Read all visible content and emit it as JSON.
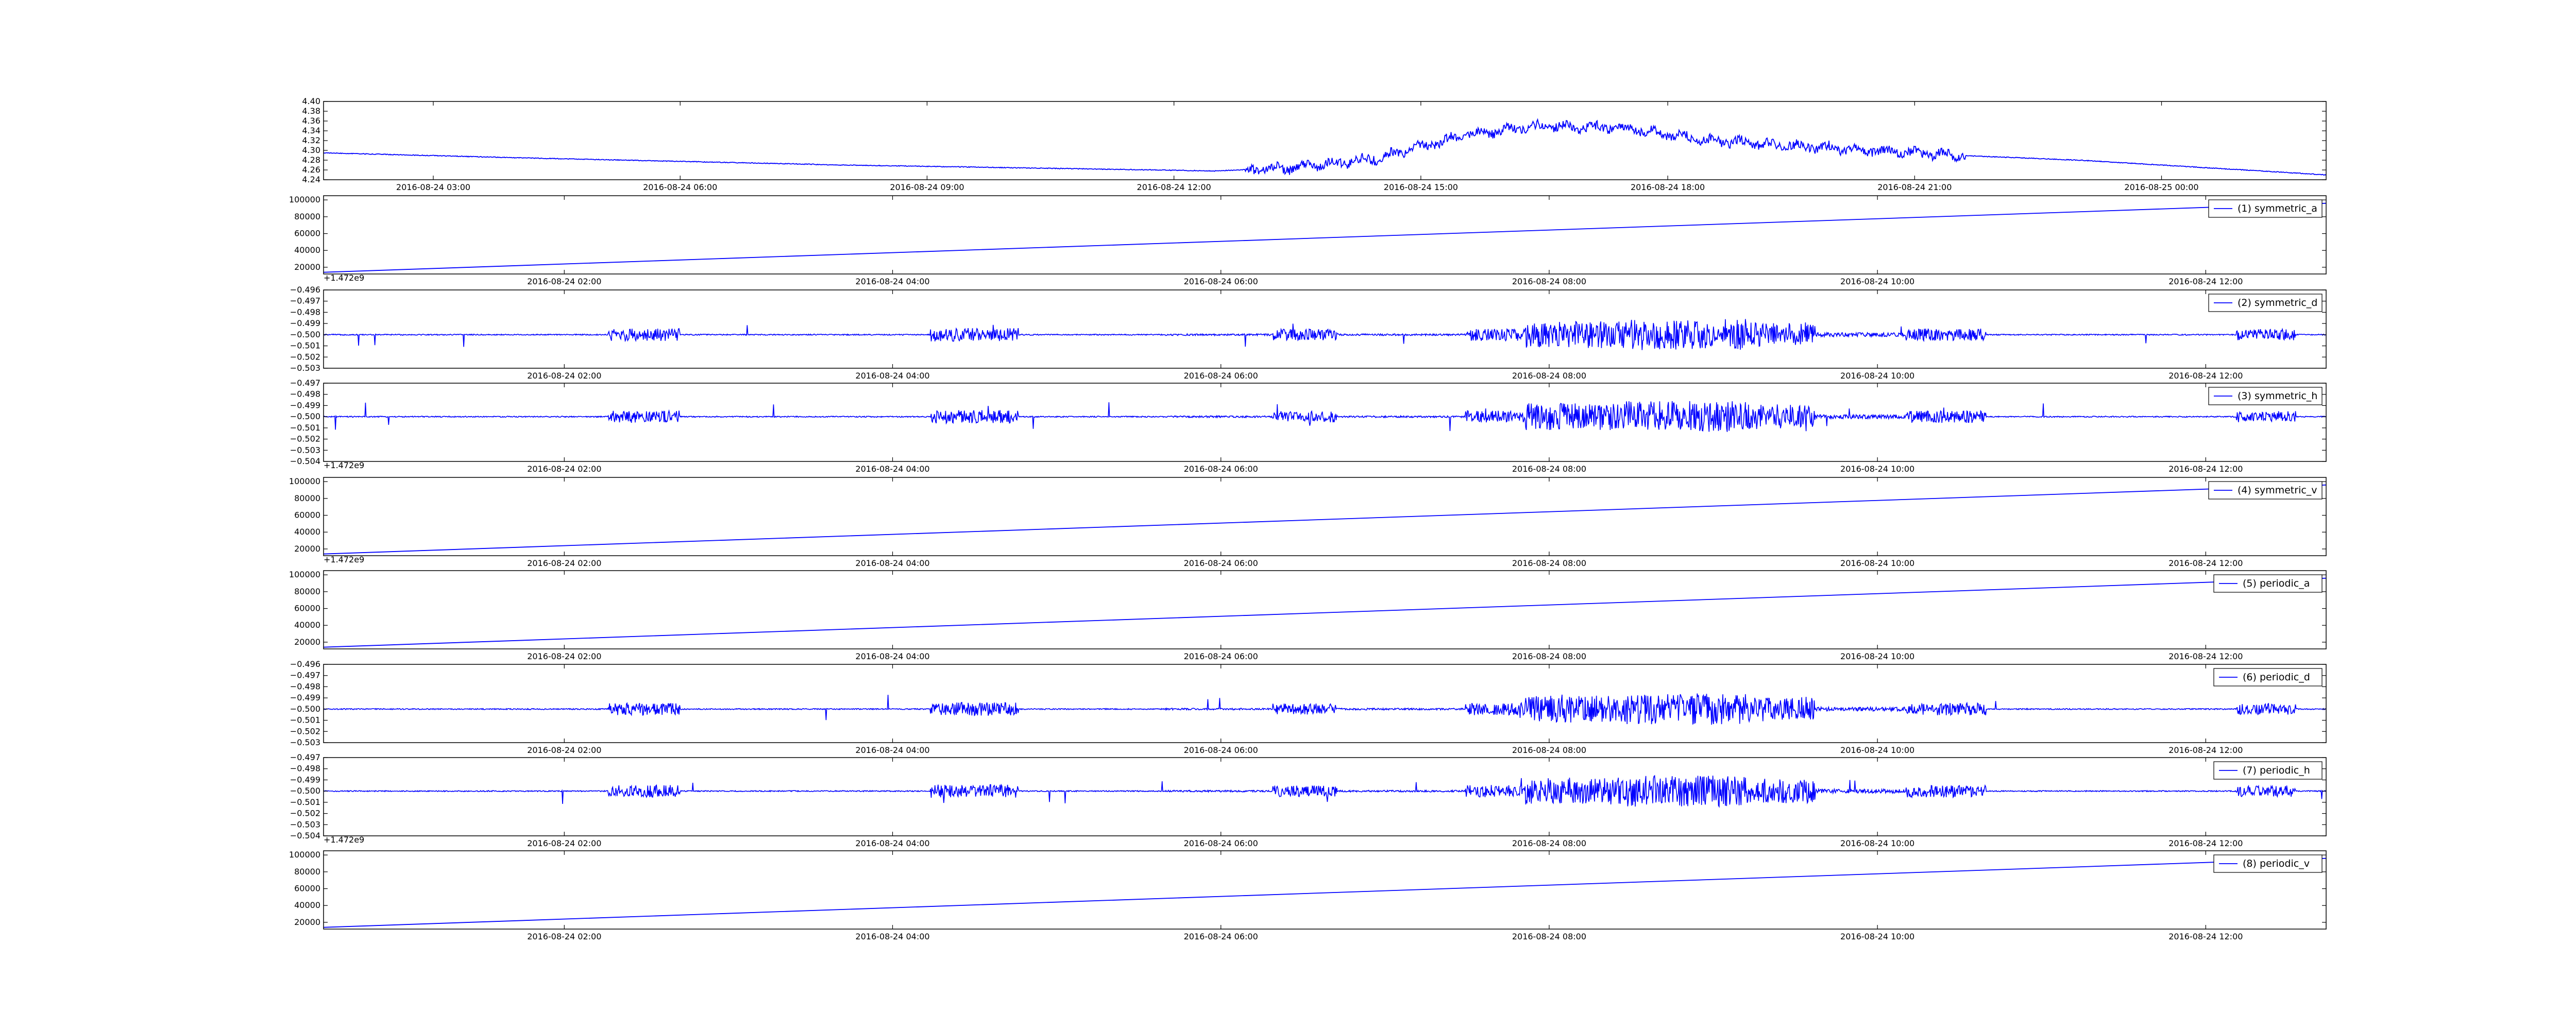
{
  "figure": {
    "background": "#ffffff",
    "line_color": "#0000ff",
    "frame_color": "#000000"
  },
  "chart_data": [
    {
      "type": "line",
      "title": "",
      "xlabel": "",
      "ylabel": "",
      "legend": null,
      "offset_text": "",
      "ylim": [
        4.24,
        4.4
      ],
      "yticks": [
        "4.24",
        "4.26",
        "4.28",
        "4.30",
        "4.32",
        "4.34",
        "4.36",
        "4.38",
        "4.40"
      ],
      "xlim": [
        "2016-08-24 01:40",
        "2016-08-25 02:00"
      ],
      "xticks": [
        "2016-08-24 03:00",
        "2016-08-24 06:00",
        "2016-08-24 09:00",
        "2016-08-24 12:00",
        "2016-08-24 15:00",
        "2016-08-24 18:00",
        "2016-08-24 21:00",
        "2016-08-25 00:00"
      ],
      "signal": "voltage",
      "series": [
        {
          "x": [
            "2016-08-24 01:40",
            "2016-08-24 04:00",
            "2016-08-24 08:00",
            "2016-08-24 11:00",
            "2016-08-24 12:30",
            "2016-08-24 13:30",
            "2016-08-24 14:30",
            "2016-08-24 15:30",
            "2016-08-24 16:30",
            "2016-08-24 17:30",
            "2016-08-24 18:30",
            "2016-08-24 19:30",
            "2016-08-24 20:30",
            "2016-08-24 21:30",
            "2016-08-24 23:00",
            "2016-08-25 02:00"
          ],
          "y": [
            4.295,
            4.285,
            4.27,
            4.262,
            4.258,
            4.265,
            4.285,
            4.33,
            4.35,
            4.345,
            4.32,
            4.31,
            4.3,
            4.29,
            4.28,
            4.25
          ]
        }
      ]
    },
    {
      "type": "line",
      "title": "",
      "xlabel": "",
      "ylabel": "",
      "legend": "(1) symmetric_a",
      "offset_text": "+1.472e9",
      "ylim": [
        12000,
        105000
      ],
      "yticks": [
        "20000",
        "40000",
        "60000",
        "80000",
        "100000"
      ],
      "xlim": [
        "2016-08-24 00:32",
        "2016-08-24 12:44"
      ],
      "xticks": [
        "2016-08-24 02:00",
        "2016-08-24 04:00",
        "2016-08-24 06:00",
        "2016-08-24 08:00",
        "2016-08-24 10:00",
        "2016-08-24 12:00"
      ],
      "signal": "ramp",
      "series": [
        {
          "x": [
            "2016-08-24 00:32",
            "2016-08-24 12:44"
          ],
          "y": [
            14000,
            96000
          ]
        }
      ]
    },
    {
      "type": "line",
      "title": "",
      "xlabel": "",
      "ylabel": "",
      "legend": "(2) symmetric_d",
      "offset_text": "",
      "ylim": [
        -0.503,
        -0.496
      ],
      "yticks": [
        "−0.503",
        "−0.502",
        "−0.501",
        "−0.500",
        "−0.499",
        "−0.498",
        "−0.497",
        "−0.496"
      ],
      "xlim": [
        "2016-08-24 00:32",
        "2016-08-24 12:44"
      ],
      "xticks": [
        "2016-08-24 02:00",
        "2016-08-24 04:00",
        "2016-08-24 06:00",
        "2016-08-24 08:00",
        "2016-08-24 10:00",
        "2016-08-24 12:00"
      ],
      "signal": "noise",
      "baseline": -0.5,
      "series": [
        {
          "x": [
            "2016-08-24 00:32",
            "2016-08-24 12:44"
          ],
          "y": [
            -0.5,
            -0.5
          ]
        }
      ]
    },
    {
      "type": "line",
      "title": "",
      "xlabel": "",
      "ylabel": "",
      "legend": "(3) symmetric_h",
      "offset_text": "+1.472e9",
      "ylim": [
        -0.504,
        -0.497
      ],
      "yticks": [
        "−0.504",
        "−0.503",
        "−0.502",
        "−0.501",
        "−0.500",
        "−0.499",
        "−0.498",
        "−0.497"
      ],
      "xlim": [
        "2016-08-24 00:32",
        "2016-08-24 12:44"
      ],
      "xticks": [
        "2016-08-24 02:00",
        "2016-08-24 04:00",
        "2016-08-24 06:00",
        "2016-08-24 08:00",
        "2016-08-24 10:00",
        "2016-08-24 12:00"
      ],
      "signal": "noise",
      "baseline": -0.5,
      "series": [
        {
          "x": [
            "2016-08-24 00:32",
            "2016-08-24 12:44"
          ],
          "y": [
            -0.5,
            -0.5
          ]
        }
      ]
    },
    {
      "type": "line",
      "title": "",
      "xlabel": "",
      "ylabel": "",
      "legend": "(4) symmetric_v",
      "offset_text": "+1.472e9",
      "ylim": [
        12000,
        105000
      ],
      "yticks": [
        "20000",
        "40000",
        "60000",
        "80000",
        "100000"
      ],
      "xlim": [
        "2016-08-24 00:32",
        "2016-08-24 12:44"
      ],
      "xticks": [
        "2016-08-24 02:00",
        "2016-08-24 04:00",
        "2016-08-24 06:00",
        "2016-08-24 08:00",
        "2016-08-24 10:00",
        "2016-08-24 12:00"
      ],
      "signal": "ramp",
      "series": [
        {
          "x": [
            "2016-08-24 00:32",
            "2016-08-24 12:44"
          ],
          "y": [
            14000,
            96000
          ]
        }
      ]
    },
    {
      "type": "line",
      "title": "",
      "xlabel": "",
      "ylabel": "",
      "legend": "(5) periodic_a",
      "offset_text": "",
      "ylim": [
        12000,
        105000
      ],
      "yticks": [
        "20000",
        "40000",
        "60000",
        "80000",
        "100000"
      ],
      "xlim": [
        "2016-08-24 00:32",
        "2016-08-24 12:44"
      ],
      "xticks": [
        "2016-08-24 02:00",
        "2016-08-24 04:00",
        "2016-08-24 06:00",
        "2016-08-24 08:00",
        "2016-08-24 10:00",
        "2016-08-24 12:00"
      ],
      "signal": "ramp",
      "series": [
        {
          "x": [
            "2016-08-24 00:32",
            "2016-08-24 12:44"
          ],
          "y": [
            14000,
            96000
          ]
        }
      ]
    },
    {
      "type": "line",
      "title": "",
      "xlabel": "",
      "ylabel": "",
      "legend": "(6) periodic_d",
      "offset_text": "",
      "ylim": [
        -0.503,
        -0.496
      ],
      "yticks": [
        "−0.503",
        "−0.502",
        "−0.501",
        "−0.500",
        "−0.499",
        "−0.498",
        "−0.497",
        "−0.496"
      ],
      "xlim": [
        "2016-08-24 00:32",
        "2016-08-24 12:44"
      ],
      "xticks": [
        "2016-08-24 02:00",
        "2016-08-24 04:00",
        "2016-08-24 06:00",
        "2016-08-24 08:00",
        "2016-08-24 10:00",
        "2016-08-24 12:00"
      ],
      "signal": "noise",
      "baseline": -0.5,
      "series": [
        {
          "x": [
            "2016-08-24 00:32",
            "2016-08-24 12:44"
          ],
          "y": [
            -0.5,
            -0.5
          ]
        }
      ]
    },
    {
      "type": "line",
      "title": "",
      "xlabel": "",
      "ylabel": "",
      "legend": "(7) periodic_h",
      "offset_text": "+1.472e9",
      "ylim": [
        -0.504,
        -0.497
      ],
      "yticks": [
        "−0.504",
        "−0.503",
        "−0.502",
        "−0.501",
        "−0.500",
        "−0.499",
        "−0.498",
        "−0.497"
      ],
      "xlim": [
        "2016-08-24 00:32",
        "2016-08-24 12:44"
      ],
      "xticks": [
        "2016-08-24 02:00",
        "2016-08-24 04:00",
        "2016-08-24 06:00",
        "2016-08-24 08:00",
        "2016-08-24 10:00",
        "2016-08-24 12:00"
      ],
      "signal": "noise",
      "baseline": -0.5,
      "series": [
        {
          "x": [
            "2016-08-24 00:32",
            "2016-08-24 12:44"
          ],
          "y": [
            -0.5,
            -0.5
          ]
        }
      ]
    },
    {
      "type": "line",
      "title": "",
      "xlabel": "",
      "ylabel": "",
      "legend": "(8) periodic_v",
      "offset_text": "",
      "ylim": [
        12000,
        105000
      ],
      "yticks": [
        "20000",
        "40000",
        "60000",
        "80000",
        "100000"
      ],
      "xlim": [
        "2016-08-24 00:32",
        "2016-08-24 12:44"
      ],
      "xticks": [
        "2016-08-24 02:00",
        "2016-08-24 04:00",
        "2016-08-24 06:00",
        "2016-08-24 08:00",
        "2016-08-24 10:00",
        "2016-08-24 12:00"
      ],
      "signal": "ramp",
      "series": [
        {
          "x": [
            "2016-08-24 00:32",
            "2016-08-24 12:44"
          ],
          "y": [
            14000,
            96000
          ]
        }
      ]
    }
  ]
}
